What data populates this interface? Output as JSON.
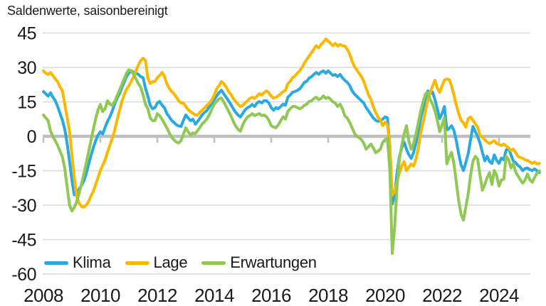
{
  "title": "Saldenwerte, saisonbereinigt",
  "colors": {
    "klima": "#29A9E1",
    "lage": "#FBB800",
    "erwartungen": "#8FC853",
    "gridline": "#D9D9D9",
    "zero_line": "#BFBFBF",
    "text": "#1A1A1A"
  },
  "chart_data": {
    "type": "line",
    "title": "Saldenwerte, saisonbereinigt",
    "x_start": "2008-01",
    "x_end": "2025-06",
    "frequency": "monthly",
    "x_tick_labels": [
      "2008",
      "2010",
      "2012",
      "2014",
      "2016",
      "2018",
      "2020",
      "2022",
      "2024"
    ],
    "y_ticks": [
      45,
      30,
      15,
      0,
      -15,
      -30,
      -45,
      -60
    ],
    "ylim": [
      -60,
      45
    ],
    "grid": "horizontal",
    "legend_position": "bottom-left-inside",
    "series": [
      {
        "name": "Klima",
        "color": "#29A9E1",
        "values": [
          19.5,
          18.5,
          17.5,
          19,
          17,
          15.5,
          13,
          10,
          7,
          3,
          -3,
          -11,
          -19,
          -25.5,
          -24.5,
          -23,
          -21.5,
          -19.5,
          -16.5,
          -12.5,
          -8.5,
          -5,
          -2,
          0.5,
          2,
          1,
          4,
          6.5,
          8.5,
          11,
          14,
          16.5,
          18.5,
          21,
          23.5,
          26,
          27.5,
          28.5,
          28,
          27.5,
          27,
          26,
          25.5,
          21,
          17.5,
          13.5,
          12,
          12.5,
          14.5,
          15.2,
          13.5,
          12.5,
          10,
          8.5,
          7,
          6,
          5,
          4.5,
          4.3,
          7,
          9.3,
          8,
          6.8,
          7.5,
          5.3,
          6.5,
          8,
          9.5,
          10.5,
          11.4,
          13,
          14.5,
          16,
          17.6,
          19,
          20.1,
          18.5,
          17,
          15.5,
          13.9,
          12,
          10.5,
          9.3,
          8.4,
          10,
          11.5,
          12.5,
          13,
          13.9,
          13,
          14.5,
          15.2,
          14.5,
          15.5,
          15.5,
          14.5,
          12.5,
          11.4,
          12.5,
          12,
          13,
          14,
          13.5,
          17,
          18,
          19.2,
          19.5,
          20,
          20.7,
          22,
          23.5,
          24,
          25.4,
          26,
          27,
          27.8,
          27,
          28,
          28.5,
          27.5,
          28.5,
          27.5,
          26.5,
          26.9,
          26,
          27,
          25.5,
          24.4,
          23.5,
          22.3,
          20,
          18.5,
          17.5,
          16.5,
          15.5,
          14.5,
          12.5,
          11,
          9.5,
          8,
          7,
          6.5,
          6.8,
          7.5,
          8.5,
          8,
          -5,
          -29.5,
          -26,
          -16,
          -9,
          -5,
          -2.5,
          -5.6,
          -8,
          -9.6,
          -7,
          -3,
          2,
          8,
          12,
          16,
          19.8,
          18.5,
          19.2,
          16,
          12,
          7.7,
          10,
          13,
          2.8,
          3.5,
          4.6,
          2.5,
          -2,
          -7.5,
          -12.5,
          -14.9,
          -11.5,
          -7.5,
          -1.5,
          4.3,
          2,
          0,
          -3,
          -7,
          -10.7,
          -8.7,
          -11,
          -11.8,
          -8.1,
          -10.5,
          -11.8,
          -9.5,
          -10.2,
          -6,
          -5,
          -8,
          -10.7,
          -11.5,
          -12.7,
          -13.5,
          -14.9,
          -14,
          -13.8,
          -14.5,
          -14.9,
          -14.2,
          -15,
          -15.8
        ]
      },
      {
        "name": "Lage",
        "color": "#FBB800",
        "values": [
          28.5,
          27.5,
          26.9,
          27.8,
          26.5,
          25,
          23.8,
          21.5,
          19.8,
          13.9,
          8.4,
          2.2,
          -8,
          -18,
          -26,
          -29,
          -30.5,
          -30.9,
          -30,
          -28.5,
          -26,
          -24,
          -21,
          -17.9,
          -15,
          -12.5,
          -10.2,
          -7,
          -4,
          -0.9,
          2.5,
          7,
          11,
          15,
          18,
          20.5,
          22,
          23.8,
          26,
          28.5,
          31,
          33,
          34,
          33,
          25.4,
          23,
          23.8,
          23.8,
          25.5,
          26.5,
          27.8,
          26,
          22.9,
          21,
          19.5,
          18.6,
          17,
          15.5,
          14.5,
          14.5,
          13,
          11.5,
          10.8,
          10,
          9.3,
          9.3,
          10.5,
          11.5,
          12.5,
          13.5,
          14.5,
          16,
          18,
          20.7,
          22,
          23.8,
          23,
          21.5,
          19.5,
          18.3,
          16.5,
          15.2,
          14,
          13,
          13.5,
          14.5,
          15.5,
          16.5,
          17,
          16.5,
          17.5,
          18.6,
          18,
          19,
          19.8,
          19,
          17.5,
          16.7,
          17,
          17.6,
          18.5,
          19.5,
          20,
          22.9,
          24,
          25.5,
          26.3,
          27.5,
          28.5,
          30,
          32,
          33.5,
          35,
          36.5,
          38,
          39.5,
          38.5,
          40,
          41,
          42.4,
          41.5,
          40.5,
          39.5,
          40.5,
          39.3,
          40,
          39.5,
          39.3,
          38,
          36,
          33,
          30.5,
          29,
          27.5,
          26,
          24,
          21,
          18,
          16.1,
          13,
          10.5,
          8.4,
          7,
          4.6,
          6.2,
          5,
          -4,
          -25.7,
          -24,
          -20,
          -16,
          -13,
          -11,
          -14.9,
          -13.5,
          -12,
          -13,
          -10,
          -5,
          1.5,
          6,
          11,
          16,
          19,
          22,
          24.4,
          21,
          19.2,
          22,
          24.5,
          25,
          24.7,
          22,
          18,
          13.6,
          10,
          7,
          5.9,
          4,
          7.7,
          8.4,
          7,
          5.5,
          4,
          0.6,
          -0.5,
          -1.5,
          -2.5,
          -3.1,
          -2.5,
          -1.9,
          -3.1,
          -3.5,
          -4,
          -3.4,
          -4.2,
          -5,
          -6.2,
          -5.5,
          -7.1,
          -8.7,
          -9.2,
          -9.6,
          -10.2,
          -10.5,
          -11.1,
          -11.8,
          -11.2,
          -12,
          -11.8
        ]
      },
      {
        "name": "Erwartungen",
        "color": "#8FC853",
        "values": [
          9.3,
          8,
          6.8,
          2.2,
          0,
          -2,
          -4,
          -6.5,
          -9,
          -14,
          -22,
          -30,
          -32.5,
          -31,
          -28.5,
          -25,
          -21,
          -16.5,
          -12,
          -7,
          -2,
          3,
          7.5,
          11.5,
          13.9,
          10.8,
          12,
          15.5,
          14,
          13.5,
          15,
          17.5,
          20,
          22.5,
          25,
          27.5,
          29,
          28.5,
          27,
          25,
          23,
          21.3,
          18,
          14,
          12,
          8,
          6.8,
          6.8,
          9.9,
          9,
          7.5,
          5.5,
          3.7,
          1.5,
          -0.3,
          -1.5,
          -2.5,
          -2.9,
          -1.9,
          1,
          3.7,
          2,
          0.6,
          1.5,
          1.2,
          2.5,
          4,
          5.5,
          6.5,
          7.7,
          9.5,
          12,
          14,
          15.2,
          16.3,
          16.7,
          15,
          13,
          11,
          9,
          6.5,
          4.5,
          3.1,
          2.2,
          5,
          7,
          8.5,
          9,
          9.9,
          9,
          9.5,
          9.9,
          9,
          9.3,
          8.5,
          7,
          4.6,
          4,
          3.7,
          5,
          6.8,
          8.5,
          7.5,
          10.8,
          12,
          13,
          13,
          12.5,
          12,
          12.5,
          13.5,
          14,
          15.2,
          15.5,
          16.5,
          17,
          16,
          16.5,
          17.6,
          16.5,
          17,
          16.1,
          15,
          14.5,
          13,
          14,
          12,
          9,
          8,
          6.2,
          4,
          1.5,
          0,
          -0.5,
          -1.5,
          -3,
          -5.6,
          -4.5,
          -3.4,
          -5,
          -7.1,
          -6.5,
          -5.6,
          -2.5,
          -1.5,
          -1,
          -15,
          -51,
          -40,
          -22,
          -10,
          -4,
          1,
          4.6,
          -2,
          -5.6,
          -3,
          1,
          6,
          11,
          15,
          18.5,
          19,
          16,
          14,
          11,
          7,
          2,
          5,
          8,
          -12,
          -9,
          -7,
          -12,
          -20,
          -28,
          -34,
          -36.5,
          -31,
          -25,
          -17,
          -11,
          -8.7,
          -10,
          -17,
          -23.5,
          -21,
          -18,
          -15.8,
          -21,
          -14.9,
          -17,
          -21.7,
          -19,
          -18.6,
          -8.7,
          -10,
          -13.8,
          -11.8,
          -15.5,
          -17.3,
          -19,
          -20.4,
          -19,
          -16.4,
          -18.9,
          -20,
          -18,
          -16,
          -15
        ]
      }
    ]
  }
}
